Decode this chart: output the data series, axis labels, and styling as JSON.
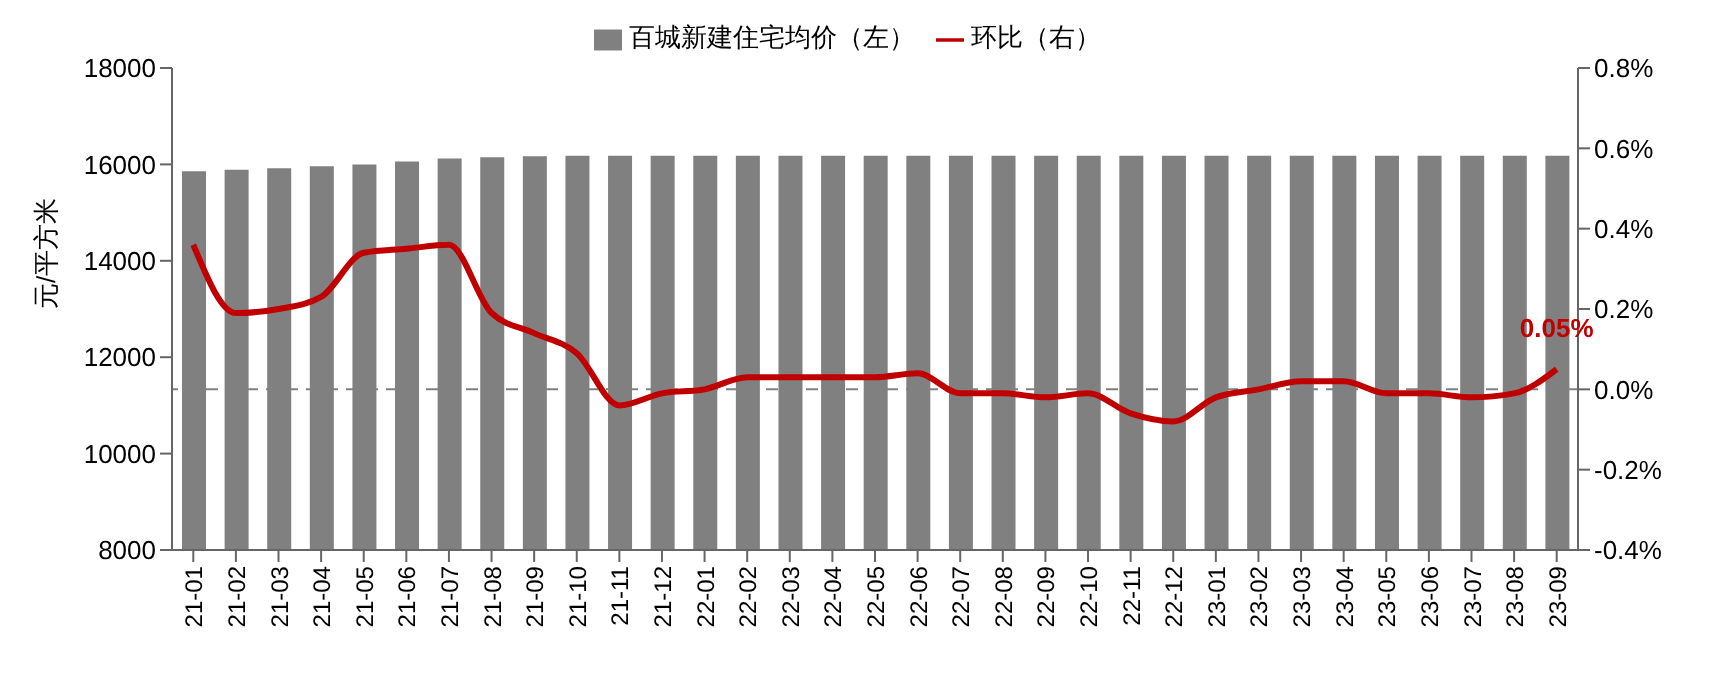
{
  "chart_data": {
    "type": "bar",
    "ylabel": "元/平方米",
    "categories": [
      "21-01",
      "21-02",
      "21-03",
      "21-04",
      "21-05",
      "21-06",
      "21-07",
      "21-08",
      "21-09",
      "21-10",
      "21-11",
      "21-12",
      "22-01",
      "22-02",
      "22-03",
      "22-04",
      "22-05",
      "22-06",
      "22-07",
      "22-08",
      "22-09",
      "22-10",
      "22-11",
      "22-12",
      "23-01",
      "23-02",
      "23-03",
      "23-04",
      "23-05",
      "23-06",
      "23-07",
      "23-08",
      "23-09"
    ],
    "series": [
      {
        "name": "百城新建住宅均价（左）",
        "color": "#808080",
        "values": [
          15860,
          15890,
          15920,
          15960,
          16000,
          16060,
          16120,
          16150,
          16170,
          16180,
          16180,
          16180,
          16180,
          16180,
          16180,
          16180,
          16180,
          16180,
          16180,
          16180,
          16180,
          16180,
          16180,
          16180,
          16180,
          16180,
          16180,
          16180,
          16180,
          16180,
          16180,
          16180,
          16180
        ]
      },
      {
        "name": "环比（右）",
        "type": "line",
        "axis": "y2",
        "color": "#c00000",
        "values": [
          0.36,
          0.19,
          0.2,
          0.23,
          0.34,
          0.35,
          0.36,
          0.19,
          0.14,
          0.09,
          -0.04,
          -0.01,
          0.0,
          0.03,
          0.03,
          0.03,
          0.03,
          0.04,
          -0.01,
          -0.01,
          -0.02,
          -0.01,
          -0.06,
          -0.08,
          -0.02,
          0.0,
          0.02,
          0.02,
          -0.01,
          -0.01,
          -0.02,
          -0.01,
          0.05
        ],
        "value_labels": [
          null,
          null,
          null,
          null,
          null,
          null,
          null,
          null,
          null,
          null,
          null,
          null,
          null,
          null,
          null,
          null,
          null,
          null,
          null,
          null,
          null,
          null,
          null,
          null,
          null,
          null,
          null,
          null,
          null,
          null,
          null,
          null,
          "0.05%"
        ]
      }
    ],
    "ylim": [
      8000,
      18000
    ],
    "yticks": [
      8000,
      10000,
      12000,
      14000,
      16000,
      18000
    ],
    "y2lim": [
      -0.4,
      0.8
    ],
    "y2ticks": [
      {
        "value": -0.4,
        "label": "-0.4%"
      },
      {
        "value": -0.2,
        "label": "-0.2%"
      },
      {
        "value": 0,
        "label": "0.0%"
      },
      {
        "value": 0.2,
        "label": "0.2%"
      },
      {
        "value": 0.4,
        "label": "0.4%"
      },
      {
        "value": 0.6,
        "label": "0.6%"
      },
      {
        "value": 0.8,
        "label": "0.8%"
      }
    ],
    "ref_lines": [
      {
        "axis": "y2",
        "value": 0,
        "color": "#808080",
        "line_style": "dashed"
      }
    ],
    "grid": false,
    "legend": "top",
    "marker": "none",
    "line_style": "solid"
  }
}
